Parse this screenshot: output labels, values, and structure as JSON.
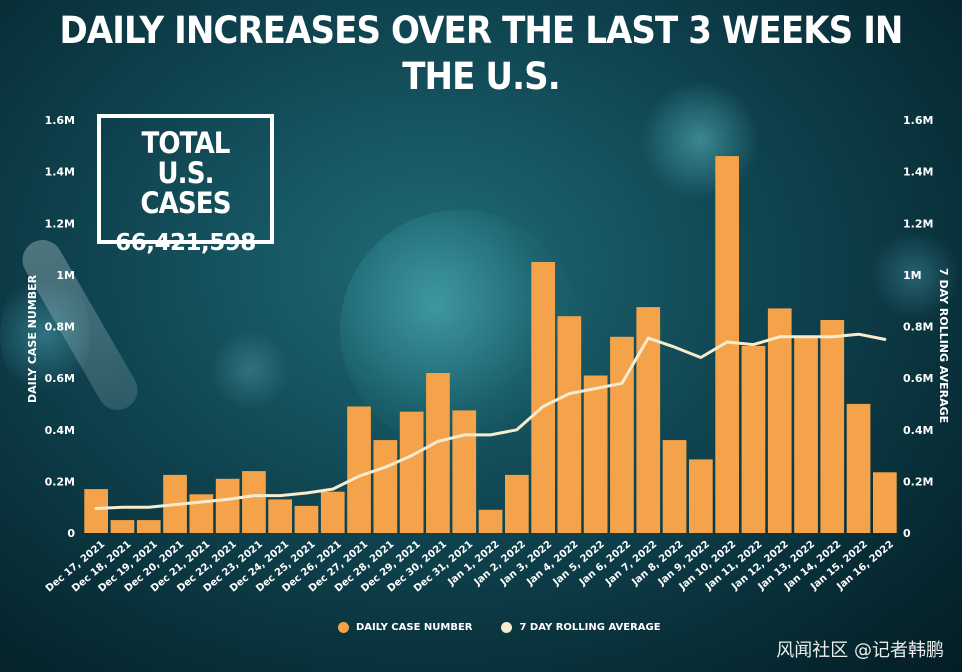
{
  "title": "DAILY INCREASES OVER THE LAST 3 WEEKS IN THE U.S.",
  "total_box": {
    "label": "TOTAL U.S. CASES",
    "value": "66,421,598"
  },
  "legend": {
    "daily": "DAILY CASE NUMBER",
    "rolling": "7 DAY ROLLING AVERAGE"
  },
  "watermark": "风闻社区 @记者韩鹏",
  "colors": {
    "bar": "#f4a34a",
    "line": "#f7eccf",
    "text": "#ffffff"
  },
  "chart_data": {
    "type": "bar",
    "title": "DAILY INCREASES OVER THE LAST 3 WEEKS IN THE U.S.",
    "ylabel": "DAILY CASE NUMBER",
    "y2label": "7 DAY ROLLING AVERAGE",
    "ylim": [
      0,
      1600000
    ],
    "y_ticks": [
      0,
      200000,
      400000,
      600000,
      800000,
      1000000,
      1200000,
      1400000,
      1600000
    ],
    "y_tick_labels": [
      "0",
      "0.2M",
      "0.4M",
      "0.6M",
      "0.8M",
      "1M",
      "1.2M",
      "1.4M",
      "1.6M"
    ],
    "categories": [
      "Dec 17, 2021",
      "Dec 18, 2021",
      "Dec 19, 2021",
      "Dec 20, 2021",
      "Dec 21, 2021",
      "Dec 22, 2021",
      "Dec 23, 2021",
      "Dec 24, 2021",
      "Dec 25, 2021",
      "Dec 26, 2021",
      "Dec 27, 2021",
      "Dec 28, 2021",
      "Dec 29, 2021",
      "Dec 30, 2021",
      "Dec 31, 2021",
      "Jan 1, 2022",
      "Jan 2, 2022",
      "Jan 3, 2022",
      "Jan 4, 2022",
      "Jan 5, 2022",
      "Jan 6, 2022",
      "Jan 7, 2022",
      "Jan 8, 2022",
      "Jan 9, 2022",
      "Jan 10, 2022",
      "Jan 11, 2022",
      "Jan 12, 2022",
      "Jan 13, 2022",
      "Jan 14, 2022",
      "Jan 15, 2022",
      "Jan 16, 2022"
    ],
    "series": [
      {
        "name": "DAILY CASE NUMBER",
        "type": "bar",
        "values": [
          170000,
          50000,
          50000,
          225000,
          150000,
          210000,
          240000,
          130000,
          105000,
          160000,
          490000,
          360000,
          470000,
          620000,
          475000,
          90000,
          225000,
          1050000,
          840000,
          610000,
          760000,
          875000,
          360000,
          285000,
          1460000,
          725000,
          870000,
          760000,
          825000,
          500000,
          235000
        ]
      },
      {
        "name": "7 DAY ROLLING AVERAGE",
        "type": "line",
        "values": [
          95000,
          100000,
          100000,
          110000,
          120000,
          130000,
          145000,
          145000,
          155000,
          170000,
          220000,
          255000,
          300000,
          355000,
          380000,
          380000,
          400000,
          490000,
          540000,
          560000,
          580000,
          755000,
          720000,
          680000,
          740000,
          730000,
          760000,
          760000,
          760000,
          770000,
          750000
        ]
      }
    ]
  }
}
